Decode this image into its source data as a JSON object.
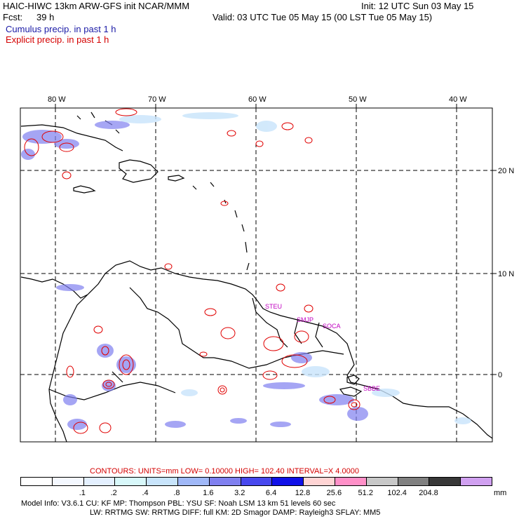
{
  "header": {
    "title": "HAIC-HIWC 13km ARW-GFS init   NCAR/MMM",
    "init": "Init: 12 UTC Sun 03 May 15",
    "fcst_label": "Fcst:",
    "fcst_value": "39 h",
    "valid": "Valid: 03 UTC Tue 05 May 15 (00 LST Tue 05 May 15)",
    "cumulus": "Cumulus precip. in past 1 h",
    "explicit": "Explicit precip. in past 1 h"
  },
  "map": {
    "lon_labels": [
      "80 W",
      "70 W",
      "60 W",
      "50 W",
      "40 W"
    ],
    "lat_labels": [
      "20 N",
      "10 N",
      "0"
    ],
    "stations": [
      "STEU",
      "SMJP",
      "SOCA",
      "SBBE"
    ]
  },
  "contours": {
    "text": "CONTOURS:  UNITS=mm   LOW=  0.10000        HIGH=   102.40        INTERVAL=X   4.0000"
  },
  "colorbar": {
    "colors": [
      "#ffffff",
      "#f4f8ff",
      "#e4f0ff",
      "#d8f8fa",
      "#c8e4fb",
      "#a0b8f8",
      "#8080f0",
      "#4848ee",
      "#1010e8",
      "#ffd4d4",
      "#ff90c8",
      "#c8c8c8",
      "#808080",
      "#383838",
      "#d0a0f0"
    ],
    "labels": [
      ".1",
      ".2",
      ".4",
      ".8",
      "1.6",
      "3.2",
      "6.4",
      "12.8",
      "25.6",
      "51.2",
      "102.4",
      "204.8"
    ],
    "units": "mm"
  },
  "footer": {
    "line1": "Model Info: V3.6.1      CU: KF         MP: Thompson        PBL: YSU         SF: Noah LSM       13 km     51 levels    60 sec",
    "line2": "LW: RRTMG     SW: RRTMG    DIFF: full     KM: 2D Smagor DAMP: Rayleigh3   SFLAY: MM5"
  }
}
